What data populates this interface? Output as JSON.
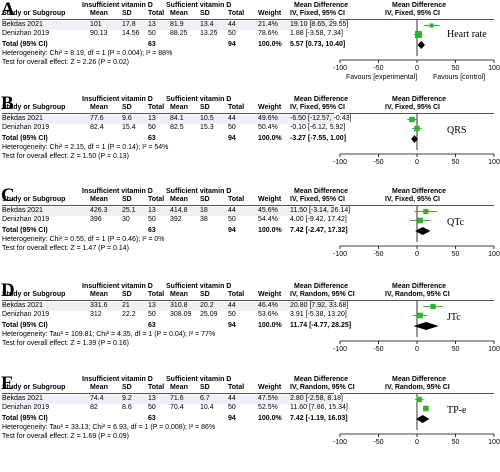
{
  "headers": {
    "group1": "Insufficient vitamin D",
    "group2": "Sufficient vitamin D",
    "mean_difference": "Mean Difference",
    "study": "Study or Subgroup",
    "mean": "Mean",
    "sd": "SD",
    "total": "Total",
    "weight": "Weight"
  },
  "axis_ticks": [
    "-100",
    "-50",
    "0",
    "50",
    "100"
  ],
  "favours_left": "Favours [experimental]",
  "favours_right": "Favours [control]",
  "total_label": "Total (95% CI)",
  "panels": [
    {
      "letter": "A",
      "method": "IV, Fixed, 95% CI",
      "tag": "Heart rate",
      "rows": [
        {
          "study": "Bekdas 2021",
          "m1": "101",
          "sd1": "17.8",
          "n1": "13",
          "m2": "81.9",
          "sd2": "13.4",
          "n2": "44",
          "weight": "21.4%",
          "ci": "19.10 [8.65, 29.55]",
          "est": 19.1,
          "lo": 8.65,
          "hi": 29.55,
          "w": 21.4
        },
        {
          "study": "Denizhan 2019",
          "m1": "90.13",
          "sd1": "14.56",
          "n1": "50",
          "m2": "88.25",
          "sd2": "13.25",
          "n2": "50",
          "weight": "78.6%",
          "ci": "1.88 [-3.58, 7.34]",
          "est": 1.88,
          "lo": -3.58,
          "hi": 7.34,
          "w": 78.6
        }
      ],
      "total_n1": "63",
      "total_n2": "94",
      "total_weight": "100.0%",
      "total_ci": "5.57 [0.73, 10.40]",
      "pooled": 5.57,
      "pooled_lo": 0.73,
      "pooled_hi": 10.4,
      "heterogeneity": "Heterogeneity: Chi² = 8.19, df = 1 (P = 0.004); I² = 88%",
      "overall": "Test for overall effect: Z = 2.26 (P = 0.02)",
      "show_favours": true
    },
    {
      "letter": "B",
      "method": "IV, Fixed, 95% CI",
      "tag": "QRS",
      "rows": [
        {
          "study": "Bekdas 2021",
          "m1": "77.6",
          "sd1": "9.6",
          "n1": "13",
          "m2": "84.1",
          "sd2": "10.5",
          "n2": "44",
          "weight": "49.6%",
          "ci": "-6.50 [-12.57, -0.43]",
          "est": -6.5,
          "lo": -12.57,
          "hi": -0.43,
          "w": 49.6
        },
        {
          "study": "Denizhan 2019",
          "m1": "82.4",
          "sd1": "15.4",
          "n1": "50",
          "m2": "82.5",
          "sd2": "15.3",
          "n2": "50",
          "weight": "50.4%",
          "ci": "-0.10 [-6.12, 5.92]",
          "est": -0.1,
          "lo": -6.12,
          "hi": 5.92,
          "w": 50.4
        }
      ],
      "total_n1": "63",
      "total_n2": "94",
      "total_weight": "100.0%",
      "total_ci": "-3.27 [-7.55, 1.00]",
      "pooled": -3.27,
      "pooled_lo": -7.55,
      "pooled_hi": 1.0,
      "heterogeneity": "Heterogeneity: Chi² = 2.15, df = 1 (P = 0.14); I² = 54%",
      "overall": "Test for overall effect: Z = 1.50 (P = 0.13)",
      "show_favours": false
    },
    {
      "letter": "C",
      "method": "IV, Fixed, 95% CI",
      "tag": "QTc",
      "rows": [
        {
          "study": "Bekdas 2021",
          "m1": "426.3",
          "sd1": "25.1",
          "n1": "13",
          "m2": "414.8",
          "sd2": "18",
          "n2": "44",
          "weight": "45.6%",
          "ci": "11.50 [-3.14, 26.14]",
          "est": 11.5,
          "lo": -3.14,
          "hi": 26.14,
          "w": 45.6
        },
        {
          "study": "Denizhan 2019",
          "m1": "396",
          "sd1": "30",
          "n1": "50",
          "m2": "392",
          "sd2": "38",
          "n2": "50",
          "weight": "54.4%",
          "ci": "4.00 [-9.42, 17.42]",
          "est": 4.0,
          "lo": -9.42,
          "hi": 17.42,
          "w": 54.4
        }
      ],
      "total_n1": "63",
      "total_n2": "94",
      "total_weight": "100.0%",
      "total_ci": "7.42 [-2.47, 17.32]",
      "pooled": 7.42,
      "pooled_lo": -2.47,
      "pooled_hi": 17.32,
      "heterogeneity": "Heterogeneity: Chi² = 0.55, df = 1 (P = 0.46); I² = 0%",
      "overall": "Test for overall effect: Z = 1.47 (P = 0.14)",
      "show_favours": false
    },
    {
      "letter": "D",
      "method": "IV, Random, 95% CI",
      "tag": "JTc",
      "rows": [
        {
          "study": "Bekdas 2021",
          "m1": "331.6",
          "sd1": "21",
          "n1": "13",
          "m2": "310.8",
          "sd2": "20.2",
          "n2": "44",
          "weight": "46.4%",
          "ci": "20.80 [7.92, 33.68]",
          "est": 20.8,
          "lo": 7.92,
          "hi": 33.68,
          "w": 46.4
        },
        {
          "study": "Denizhan 2019",
          "m1": "312",
          "sd1": "22.2",
          "n1": "50",
          "m2": "308.09",
          "sd2": "25.09",
          "n2": "50",
          "weight": "53.6%",
          "ci": "3.91 [-5.38, 13.20]",
          "est": 3.91,
          "lo": -5.38,
          "hi": 13.2,
          "w": 53.6
        }
      ],
      "total_n1": "63",
      "total_n2": "94",
      "total_weight": "100.0%",
      "total_ci": "11.74 [-4.77, 28.25]",
      "pooled": 11.74,
      "pooled_lo": -4.77,
      "pooled_hi": 28.25,
      "heterogeneity": "Heterogeneity: Tau² = 109.81; Chi² = 4.35, df = 1 (P = 0.04); I² = 77%",
      "overall": "Test for overall effect: Z = 1.39 (P = 0.16)",
      "show_favours": false
    },
    {
      "letter": "E",
      "method": "IV, Random, 95% CI",
      "tag": "TP-e",
      "rows": [
        {
          "study": "Bekdas 2021",
          "m1": "74.4",
          "sd1": "9.2",
          "n1": "13",
          "m2": "71.6",
          "sd2": "6.7",
          "n2": "44",
          "weight": "47.5%",
          "ci": "2.80 [-2.58, 8.18]",
          "est": 2.8,
          "lo": -2.58,
          "hi": 8.18,
          "w": 47.5
        },
        {
          "study": "Denizhan 2019",
          "m1": "82",
          "sd1": "8.6",
          "n1": "50",
          "m2": "70.4",
          "sd2": "10.4",
          "n2": "50",
          "weight": "52.5%",
          "ci": "11.60 [7.86, 15.34]",
          "est": 11.6,
          "lo": 7.86,
          "hi": 15.34,
          "w": 52.5
        }
      ],
      "total_n1": "63",
      "total_n2": "94",
      "total_weight": "100.0%",
      "total_ci": "7.42 [-1.19, 16.03]",
      "pooled": 7.42,
      "pooled_lo": -1.19,
      "pooled_hi": 16.03,
      "heterogeneity": "Heterogeneity: Tau² = 33.13; Chi² = 6.93, df = 1 (P = 0.008); I² = 86%",
      "overall": "Test for overall effect: Z = 1.69 (P = 0.09)",
      "show_favours": false
    }
  ],
  "colors": {
    "square": "#2db52d",
    "diamond": "#000000",
    "row_shade": "#eef0f5"
  },
  "chart_data": {
    "type": "forest",
    "xlim": [
      -100,
      100
    ],
    "xticks": [
      -100,
      -50,
      0,
      50,
      100
    ],
    "note": "Five forest plots (A–E); effect estimates and CIs per panel are listed under panels[].rows and panels[].pooled"
  }
}
